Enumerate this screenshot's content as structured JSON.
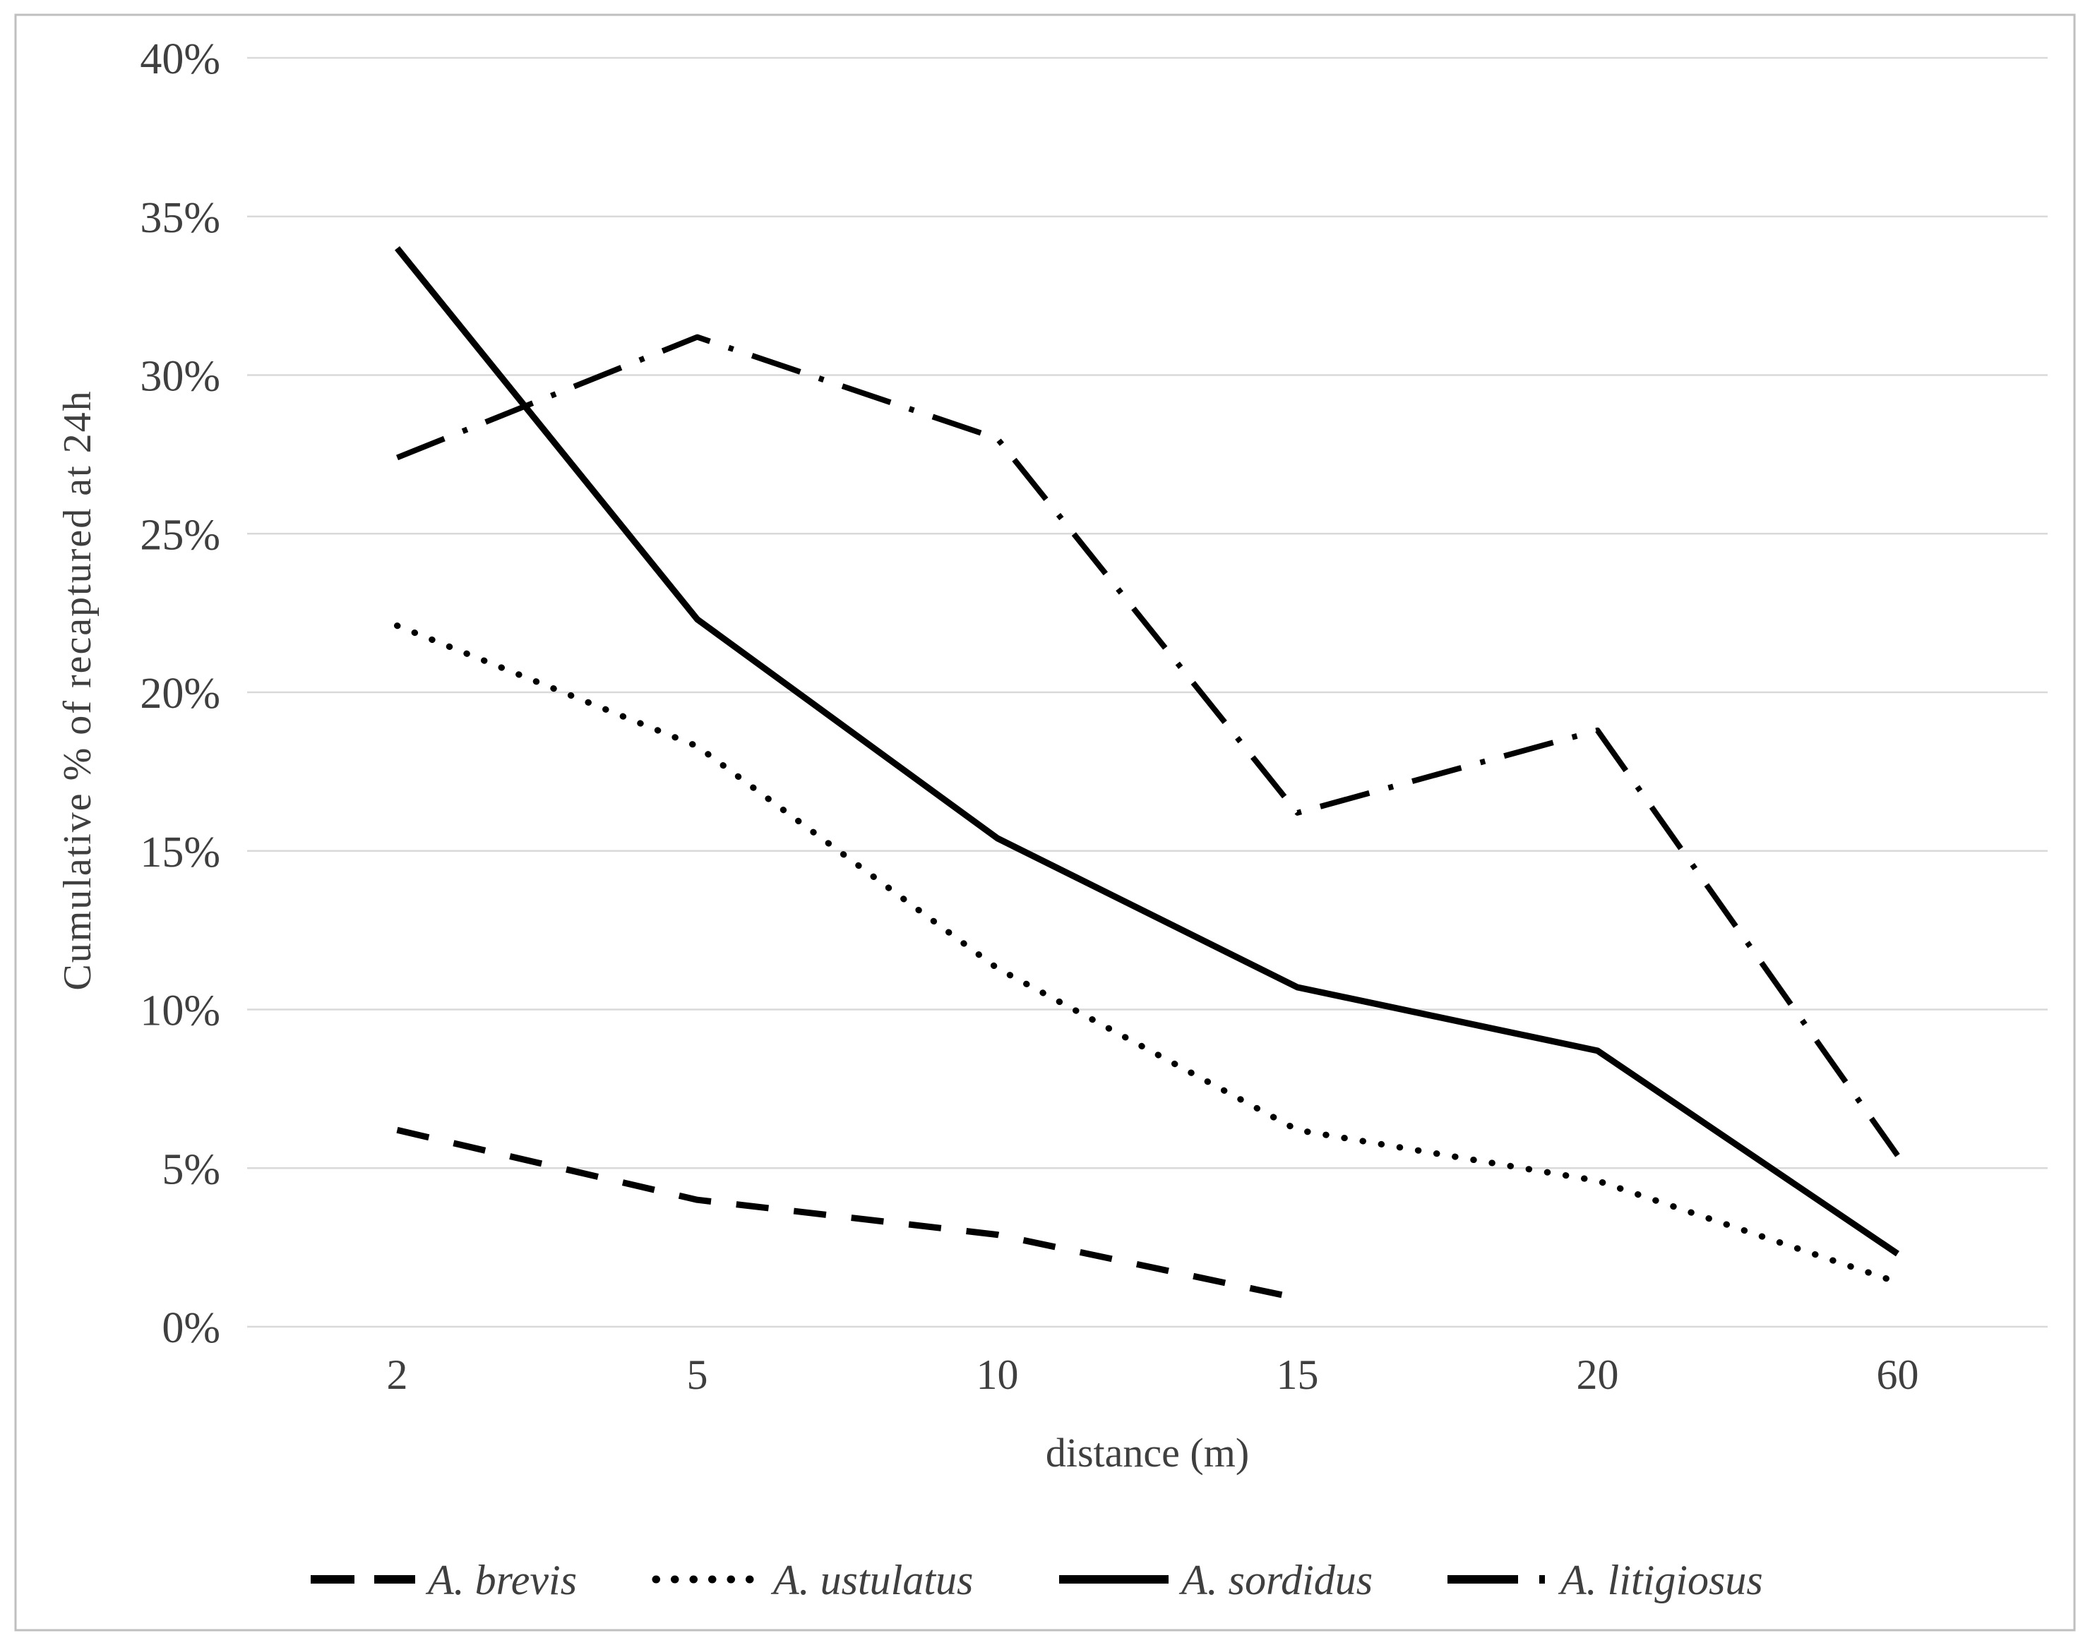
{
  "colors": {
    "series_line": "#000000",
    "gridline": "#d9d9d9",
    "figure_border": "#bfbfbf",
    "label_text": "#3f3f3f"
  },
  "chart_data": {
    "type": "line",
    "title": "",
    "xlabel": "distance (m)",
    "ylabel": "Cumulative % of recaptured at 24h",
    "categories": [
      "2",
      "5",
      "10",
      "15",
      "20",
      "60"
    ],
    "y_tick_labels": [
      "0%",
      "5%",
      "10%",
      "15%",
      "20%",
      "25%",
      "30%",
      "35%",
      "40%"
    ],
    "ylim": [
      0,
      40
    ],
    "y_step": 5,
    "grid": "horizontal-only",
    "legend_position": "bottom",
    "series": [
      {
        "name": "A. brevis",
        "style": "dashed",
        "color": "#000000",
        "values": [
          6.2,
          4.0,
          2.9,
          0.9,
          null,
          null
        ]
      },
      {
        "name": "A. ustulatus",
        "style": "dotted",
        "color": "#000000",
        "values": [
          22.1,
          18.3,
          11.3,
          6.2,
          4.6,
          1.4
        ]
      },
      {
        "name": "A. sordidus",
        "style": "solid",
        "color": "#000000",
        "values": [
          34.0,
          22.3,
          15.4,
          10.7,
          8.7,
          2.3
        ]
      },
      {
        "name": "A. litigiosus",
        "style": "dash-dot",
        "color": "#000000",
        "values": [
          27.4,
          31.2,
          28.0,
          16.2,
          18.8,
          5.4
        ]
      }
    ]
  }
}
